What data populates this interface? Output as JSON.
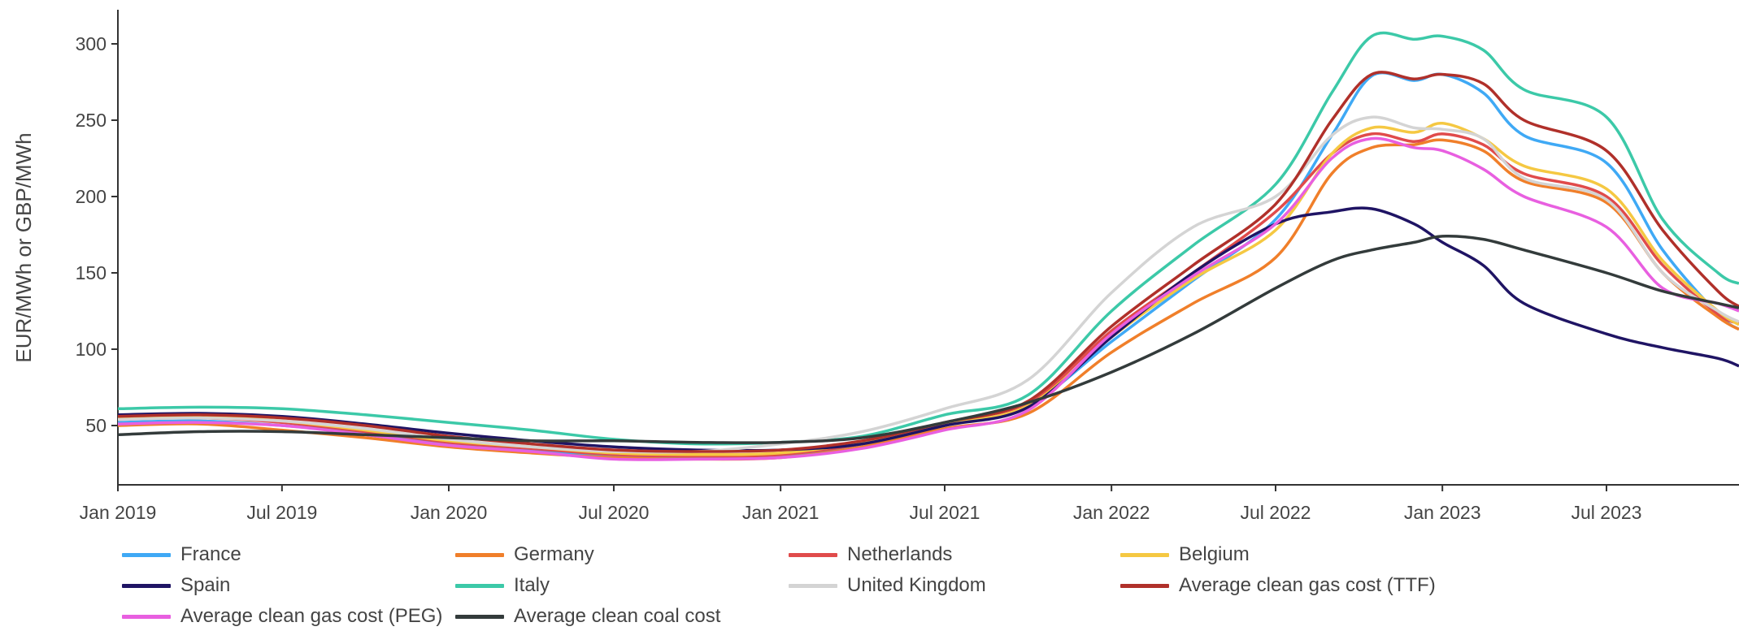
{
  "chart_data": {
    "type": "line",
    "title": "",
    "ylabel": "EUR/MWh or GBP/MWh",
    "xlabel": "",
    "ylim": [
      10,
      325
    ],
    "xlim": [
      "2019-01-01",
      "2023-12-20"
    ],
    "yticks": [
      50,
      100,
      150,
      200,
      250,
      300
    ],
    "xticks": [
      {
        "date": "2019-01-01",
        "label": "Jan 2019"
      },
      {
        "date": "2019-07-01",
        "label": "Jul 2019"
      },
      {
        "date": "2020-01-01",
        "label": "Jan 2020"
      },
      {
        "date": "2020-07-01",
        "label": "Jul 2020"
      },
      {
        "date": "2021-01-01",
        "label": "Jan 2021"
      },
      {
        "date": "2021-07-01",
        "label": "Jul 2021"
      },
      {
        "date": "2022-01-01",
        "label": "Jan 2022"
      },
      {
        "date": "2022-07-01",
        "label": "Jul 2022"
      },
      {
        "date": "2023-01-01",
        "label": "Jan 2023"
      },
      {
        "date": "2023-07-01",
        "label": "Jul 2023"
      }
    ],
    "x": [
      "2019-01-01",
      "2019-04-01",
      "2019-07-01",
      "2019-10-01",
      "2020-01-01",
      "2020-04-01",
      "2020-07-01",
      "2020-10-01",
      "2021-01-01",
      "2021-04-01",
      "2021-07-01",
      "2021-10-01",
      "2022-01-01",
      "2022-04-01",
      "2022-07-01",
      "2022-09-01",
      "2022-10-15",
      "2022-12-01",
      "2023-01-01",
      "2023-02-15",
      "2023-04-01",
      "2023-07-01",
      "2023-09-01",
      "2023-11-01",
      "2023-12-20"
    ],
    "series": [
      {
        "name": "France",
        "color": "#3fa9f5",
        "values": [
          52,
          53,
          50,
          45,
          38,
          34,
          30,
          29,
          30,
          38,
          50,
          63,
          105,
          145,
          185,
          240,
          279,
          276,
          280,
          268,
          240,
          222,
          165,
          123,
          113
        ]
      },
      {
        "name": "Germany",
        "color": "#f07f2a",
        "values": [
          50,
          51,
          47,
          42,
          36,
          32,
          29,
          28,
          29,
          36,
          48,
          58,
          98,
          130,
          160,
          215,
          232,
          234,
          237,
          230,
          210,
          196,
          150,
          121,
          113
        ]
      },
      {
        "name": "Netherlands",
        "color": "#e04b4b",
        "values": [
          54,
          55,
          52,
          46,
          39,
          35,
          31,
          30,
          31,
          38,
          50,
          64,
          112,
          150,
          190,
          228,
          241,
          236,
          241,
          234,
          215,
          200,
          155,
          123,
          117
        ]
      },
      {
        "name": "Belgium",
        "color": "#f5c842",
        "values": [
          55,
          56,
          53,
          47,
          40,
          36,
          32,
          31,
          32,
          39,
          51,
          63,
          108,
          146,
          178,
          228,
          245,
          242,
          248,
          238,
          220,
          205,
          158,
          125,
          116
        ]
      },
      {
        "name": "Spain",
        "color": "#1f1464",
        "values": [
          57,
          58,
          56,
          51,
          45,
          40,
          36,
          34,
          34,
          38,
          50,
          62,
          108,
          150,
          182,
          190,
          192,
          182,
          170,
          155,
          130,
          110,
          101,
          94,
          89
        ]
      },
      {
        "name": "Italy",
        "color": "#3cc9a8",
        "values": [
          61,
          62,
          61,
          57,
          52,
          47,
          41,
          38,
          39,
          43,
          57,
          70,
          125,
          168,
          208,
          268,
          305,
          303,
          305,
          296,
          270,
          252,
          185,
          150,
          143
        ]
      },
      {
        "name": "United Kingdom",
        "color": "#d4d4d4",
        "values": [
          54,
          55,
          53,
          48,
          41,
          36,
          33,
          33,
          38,
          46,
          61,
          80,
          137,
          180,
          200,
          240,
          252,
          245,
          244,
          238,
          212,
          198,
          150,
          125,
          118
        ]
      },
      {
        "name": "Average clean gas cost (TTF)",
        "color": "#b0302a",
        "values": [
          56,
          57,
          55,
          50,
          43,
          38,
          34,
          33,
          34,
          40,
          52,
          66,
          115,
          155,
          195,
          250,
          280,
          277,
          280,
          274,
          250,
          230,
          178,
          138,
          128
        ]
      },
      {
        "name": "Average clean gas cost (PEG)",
        "color": "#e85fe0",
        "values": [
          51,
          52,
          50,
          44,
          37,
          33,
          28,
          28,
          29,
          35,
          47,
          60,
          110,
          148,
          182,
          225,
          238,
          232,
          230,
          218,
          200,
          180,
          140,
          130,
          125
        ]
      },
      {
        "name": "Average clean coal cost",
        "color": "#333b3b",
        "values": [
          44,
          46,
          46,
          44,
          42,
          40,
          40,
          39,
          39,
          42,
          52,
          65,
          85,
          110,
          140,
          158,
          165,
          170,
          174,
          172,
          165,
          150,
          138,
          130,
          127
        ]
      }
    ],
    "legend": "bottom"
  }
}
